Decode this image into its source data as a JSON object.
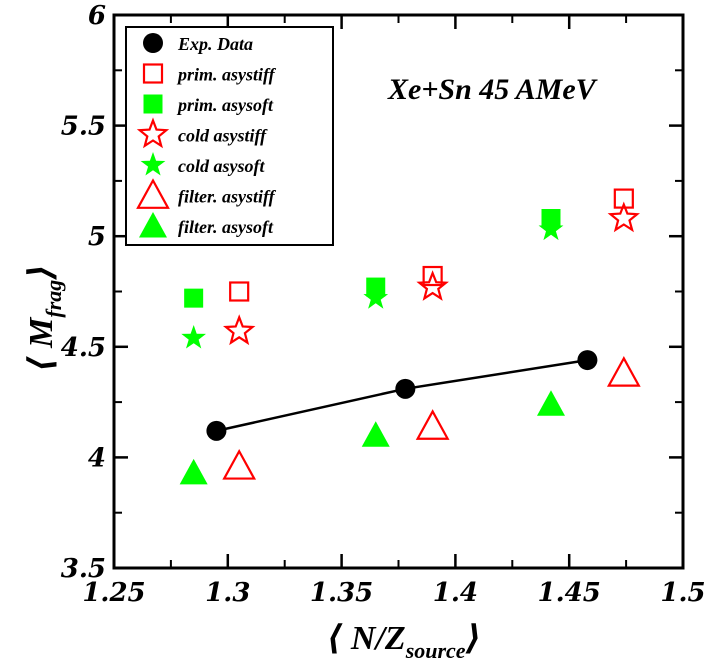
{
  "chart_data": {
    "type": "scatter",
    "title": "",
    "xlabel": "⟨ N/Z",
    "xlabel_sub": "source",
    "xlabel_close": "⟩",
    "ylabel": "⟨ M",
    "ylabel_sub": "frag",
    "ylabel_close": "⟩",
    "xlim": [
      1.25,
      1.5
    ],
    "ylim": [
      3.5,
      6
    ],
    "xticks": [
      1.25,
      1.3,
      1.35,
      1.4,
      1.45,
      1.5
    ],
    "xtick_labels": [
      "1.25",
      "1.3",
      "1.35",
      "1.4",
      "1.45",
      "1.5"
    ],
    "yticks": [
      3.5,
      4,
      4.5,
      5,
      5.5,
      6
    ],
    "ytick_labels": [
      "3.5",
      "4",
      "4.5",
      "5",
      "5.5",
      "6"
    ],
    "grid": false,
    "legend_position": "top-left",
    "annotation": "Xe+Sn 45 AMeV",
    "series": [
      {
        "name": "Exp. Data",
        "marker": "circle",
        "filled": true,
        "color": "#000000",
        "line": true,
        "x": [
          1.295,
          1.378,
          1.458
        ],
        "y": [
          4.12,
          4.31,
          4.44
        ]
      },
      {
        "name": "prim. asystiff",
        "marker": "square",
        "filled": false,
        "color": "#ff0000",
        "line": false,
        "x": [
          1.305,
          1.39,
          1.474
        ],
        "y": [
          4.75,
          4.82,
          5.17
        ]
      },
      {
        "name": "prim. asysoft",
        "marker": "square",
        "filled": true,
        "color": "#00ff00",
        "line": false,
        "x": [
          1.285,
          1.365,
          1.442
        ],
        "y": [
          4.72,
          4.77,
          5.08
        ]
      },
      {
        "name": "cold asystiff",
        "marker": "star",
        "filled": false,
        "color": "#ff0000",
        "line": false,
        "x": [
          1.305,
          1.39,
          1.474
        ],
        "y": [
          4.57,
          4.77,
          5.08
        ]
      },
      {
        "name": "cold asysoft",
        "marker": "star",
        "filled": true,
        "color": "#00ff00",
        "line": false,
        "x": [
          1.285,
          1.365,
          1.442
        ],
        "y": [
          4.54,
          4.72,
          5.03
        ]
      },
      {
        "name": "filter. asystiff",
        "marker": "triangle",
        "filled": false,
        "color": "#ff0000",
        "line": false,
        "x": [
          1.305,
          1.39,
          1.474
        ],
        "y": [
          3.96,
          4.14,
          4.38
        ]
      },
      {
        "name": "filter. asysoft",
        "marker": "triangle",
        "filled": true,
        "color": "#00ff00",
        "line": false,
        "x": [
          1.285,
          1.365,
          1.442
        ],
        "y": [
          3.93,
          4.1,
          4.24
        ]
      }
    ]
  }
}
